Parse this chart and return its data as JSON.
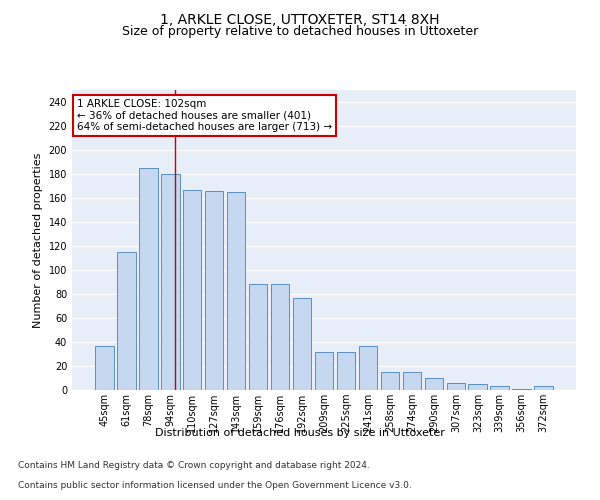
{
  "title": "1, ARKLE CLOSE, UTTOXETER, ST14 8XH",
  "subtitle": "Size of property relative to detached houses in Uttoxeter",
  "xlabel": "Distribution of detached houses by size in Uttoxeter",
  "ylabel": "Number of detached properties",
  "categories": [
    "45sqm",
    "61sqm",
    "78sqm",
    "94sqm",
    "110sqm",
    "127sqm",
    "143sqm",
    "159sqm",
    "176sqm",
    "192sqm",
    "209sqm",
    "225sqm",
    "241sqm",
    "258sqm",
    "274sqm",
    "290sqm",
    "307sqm",
    "323sqm",
    "339sqm",
    "356sqm",
    "372sqm"
  ],
  "values": [
    37,
    115,
    185,
    180,
    167,
    166,
    165,
    88,
    88,
    77,
    32,
    32,
    37,
    15,
    15,
    10,
    6,
    5,
    3,
    1,
    3
  ],
  "bar_color": "#c5d8f0",
  "bar_edge_color": "#5a8fc0",
  "red_line_x": 3.2,
  "annotation_text": "1 ARKLE CLOSE: 102sqm\n← 36% of detached houses are smaller (401)\n64% of semi-detached houses are larger (713) →",
  "annotation_box_color": "#ffffff",
  "annotation_box_edge": "#cc0000",
  "footer_line1": "Contains HM Land Registry data © Crown copyright and database right 2024.",
  "footer_line2": "Contains public sector information licensed under the Open Government Licence v3.0.",
  "ylim": [
    0,
    250
  ],
  "yticks": [
    0,
    20,
    40,
    60,
    80,
    100,
    120,
    140,
    160,
    180,
    200,
    220,
    240
  ],
  "background_color": "#e8eef8",
  "grid_color": "#ffffff",
  "title_fontsize": 10,
  "subtitle_fontsize": 9,
  "axis_label_fontsize": 8,
  "tick_fontsize": 7,
  "annotation_fontsize": 7.5,
  "footer_fontsize": 6.5
}
